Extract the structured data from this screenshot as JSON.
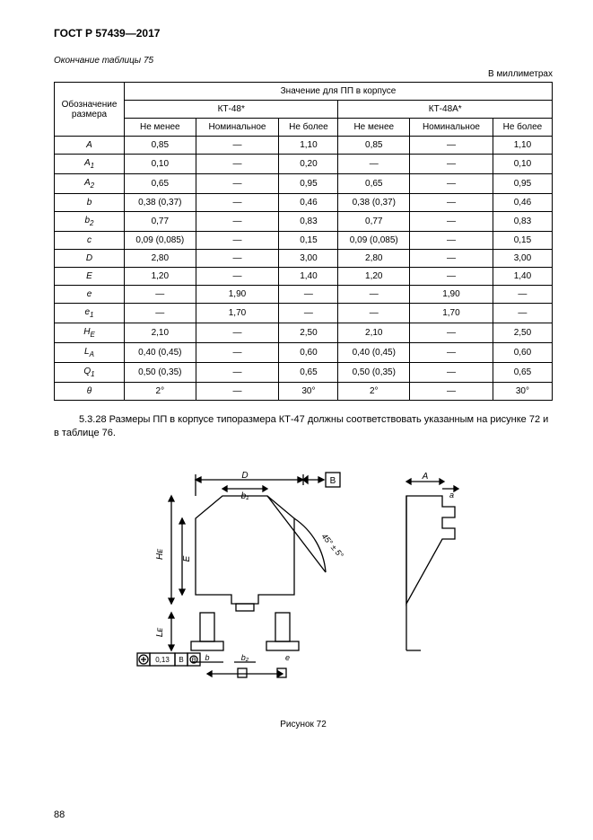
{
  "doc_title": "ГОСТ Р 57439—2017",
  "continuation_label": "Окончание таблицы 75",
  "units_label": "В миллиметрах",
  "table": {
    "rowhead_line1": "Обозначение",
    "rowhead_line2": "размера",
    "group_header": "Значение для ПП в корпусе",
    "group1": "КТ-48*",
    "group2": "КТ-48А*",
    "col_min": "Не менее",
    "col_nom": "Номинальное",
    "col_max": "Не более",
    "rows": [
      {
        "p": "A",
        "s": "",
        "v": [
          "0,85",
          "—",
          "1,10",
          "0,85",
          "—",
          "1,10"
        ]
      },
      {
        "p": "A",
        "s": "1",
        "v": [
          "0,10",
          "—",
          "0,20",
          "—",
          "—",
          "0,10"
        ]
      },
      {
        "p": "A",
        "s": "2",
        "v": [
          "0,65",
          "—",
          "0,95",
          "0,65",
          "—",
          "0,95"
        ]
      },
      {
        "p": "b",
        "s": "",
        "v": [
          "0,38 (0,37)",
          "—",
          "0,46",
          "0,38 (0,37)",
          "—",
          "0,46"
        ]
      },
      {
        "p": "b",
        "s": "2",
        "v": [
          "0,77",
          "—",
          "0,83",
          "0,77",
          "—",
          "0,83"
        ]
      },
      {
        "p": "c",
        "s": "",
        "v": [
          "0,09 (0,085)",
          "—",
          "0,15",
          "0,09 (0,085)",
          "—",
          "0,15"
        ]
      },
      {
        "p": "D",
        "s": "",
        "v": [
          "2,80",
          "—",
          "3,00",
          "2,80",
          "—",
          "3,00"
        ]
      },
      {
        "p": "E",
        "s": "",
        "v": [
          "1,20",
          "—",
          "1,40",
          "1,20",
          "—",
          "1,40"
        ]
      },
      {
        "p": "e",
        "s": "",
        "v": [
          "—",
          "1,90",
          "—",
          "—",
          "1,90",
          "—"
        ]
      },
      {
        "p": "e",
        "s": "1",
        "v": [
          "—",
          "1,70",
          "—",
          "—",
          "1,70",
          "—"
        ]
      },
      {
        "p": "H",
        "s": "E",
        "v": [
          "2,10",
          "—",
          "2,50",
          "2,10",
          "—",
          "2,50"
        ]
      },
      {
        "p": "L",
        "s": "A",
        "v": [
          "0,40 (0,45)",
          "—",
          "0,60",
          "0,40 (0,45)",
          "—",
          "0,60"
        ]
      },
      {
        "p": "Q",
        "s": "1",
        "v": [
          "0,50 (0,35)",
          "—",
          "0,65",
          "0,50 (0,35)",
          "—",
          "0,65"
        ]
      },
      {
        "p": "θ",
        "s": "",
        "v": [
          "2°",
          "—",
          "30°",
          "2°",
          "—",
          "30°"
        ]
      }
    ]
  },
  "paragraph": "5.3.28 Размеры ПП в корпусе типоразмера КТ-47 должны соответствовать указанным на рисунке 72 и в таблице 76.",
  "figure": {
    "caption": "Рисунок 72",
    "labels": {
      "D": "D",
      "b1": "b₁",
      "B": "В",
      "A": "A",
      "a": "a",
      "HE": "Hᴇ",
      "E": "E",
      "LE": "Lᴇ",
      "b": "b",
      "b2": "b₂",
      "e": "e",
      "angle": "45° ± 5°",
      "tol": "0,13",
      "tolB": "В",
      "tolTheta": "θ"
    }
  },
  "page_number": "88"
}
